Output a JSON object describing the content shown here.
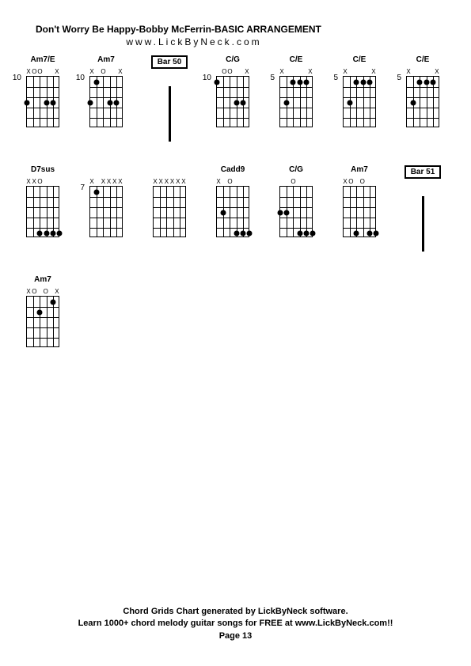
{
  "header": {
    "title": "Don't Worry Be Happy-Bobby McFerrin-BASIC ARRANGEMENT",
    "subtitle": "www.LickByNeck.com"
  },
  "footer": {
    "line1": "Chord Grids Chart generated by LickByNeck software.",
    "line2": "Learn 1000+ chord melody guitar songs for FREE at www.LickByNeck.com!!",
    "line3": "Page 13"
  },
  "rows": [
    [
      {
        "type": "chord",
        "name": "Am7/E",
        "fret": "10",
        "top": [
          "X",
          "O",
          "O",
          "",
          "",
          "X"
        ],
        "dots": [
          [
            2,
            0
          ],
          [
            2,
            3
          ],
          [
            2,
            4
          ]
        ]
      },
      {
        "type": "chord",
        "name": "Am7",
        "fret": "10",
        "top": [
          "X",
          "",
          "O",
          "",
          "",
          "X"
        ],
        "dots": [
          [
            2,
            0
          ],
          [
            0,
            1
          ],
          [
            2,
            3
          ],
          [
            2,
            4
          ]
        ]
      },
      {
        "type": "bar",
        "label": "Bar 50"
      },
      {
        "type": "chord",
        "name": "C/G",
        "fret": "10",
        "top": [
          "",
          "O",
          "O",
          "",
          "",
          "X"
        ],
        "dots": [
          [
            0,
            0
          ],
          [
            2,
            3
          ],
          [
            2,
            4
          ]
        ]
      },
      {
        "type": "chord",
        "name": "C/E",
        "fret": "5",
        "top": [
          "X",
          "",
          "",
          "",
          "",
          "X"
        ],
        "dots": [
          [
            2,
            1
          ],
          [
            0,
            2
          ],
          [
            0,
            3
          ],
          [
            0,
            4
          ]
        ]
      },
      {
        "type": "chord",
        "name": "C/E",
        "fret": "5",
        "top": [
          "X",
          "",
          "",
          "",
          "",
          "X"
        ],
        "dots": [
          [
            2,
            1
          ],
          [
            0,
            2
          ],
          [
            0,
            3
          ],
          [
            0,
            4
          ]
        ]
      },
      {
        "type": "chord",
        "name": "C/E",
        "fret": "5",
        "top": [
          "X",
          "",
          "",
          "",
          "",
          "X"
        ],
        "dots": [
          [
            2,
            1
          ],
          [
            0,
            2
          ],
          [
            0,
            3
          ],
          [
            0,
            4
          ]
        ]
      }
    ],
    [
      {
        "type": "chord",
        "name": "D7sus",
        "fret": "",
        "top": [
          "X",
          "X",
          "O",
          "",
          "",
          ""
        ],
        "dots": [
          [
            4,
            2
          ],
          [
            4,
            3
          ],
          [
            4,
            4
          ],
          [
            4,
            5
          ]
        ]
      },
      {
        "type": "chord",
        "name": "",
        "fret": "7",
        "top": [
          "X",
          "",
          "X",
          "X",
          "X",
          "X"
        ],
        "dots": [
          [
            0,
            1
          ]
        ]
      },
      {
        "type": "chord",
        "name": "",
        "fret": "",
        "top": [
          "X",
          "X",
          "X",
          "X",
          "X",
          "X"
        ],
        "dots": []
      },
      {
        "type": "chord",
        "name": "Cadd9",
        "fret": "",
        "top": [
          "X",
          "",
          "O",
          "",
          "",
          ""
        ],
        "dots": [
          [
            4,
            3
          ],
          [
            4,
            4
          ],
          [
            4,
            5
          ],
          [
            2,
            1
          ]
        ]
      },
      {
        "type": "chord",
        "name": "C/G",
        "fret": "",
        "top": [
          "",
          "",
          "O",
          "",
          "",
          ""
        ],
        "dots": [
          [
            2,
            0
          ],
          [
            4,
            3
          ],
          [
            4,
            4
          ],
          [
            4,
            5
          ],
          [
            2,
            1
          ]
        ]
      },
      {
        "type": "chord",
        "name": "Am7",
        "fret": "",
        "top": [
          "X",
          "O",
          "",
          "O",
          "",
          ""
        ],
        "dots": [
          [
            4,
            2
          ],
          [
            4,
            4
          ],
          [
            4,
            5
          ]
        ]
      },
      {
        "type": "bar",
        "label": "Bar 51"
      }
    ],
    [
      {
        "type": "chord",
        "name": "Am7",
        "fret": "",
        "top": [
          "X",
          "O",
          "",
          "O",
          "",
          "X"
        ],
        "dots": [
          [
            1,
            2
          ],
          [
            0,
            4
          ]
        ]
      }
    ]
  ],
  "styling": {
    "page_bg": "#ffffff",
    "text_color": "#000000",
    "diagram_color": "#000000",
    "title_fontsize": 12,
    "chord_name_fontsize": 10,
    "footer_fontsize": 11
  }
}
